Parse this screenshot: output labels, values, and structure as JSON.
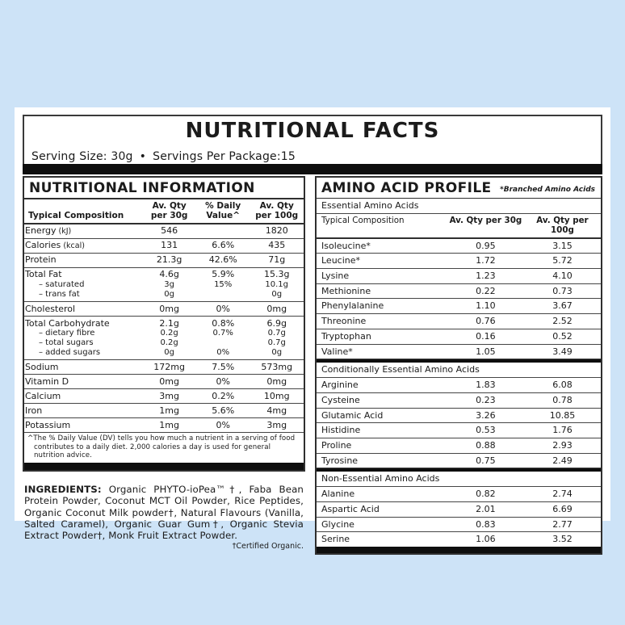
{
  "page": {
    "background_color": "#cde3f7",
    "card_color": "#ffffff",
    "text_color": "#1b1b1b"
  },
  "header": {
    "title": "NUTRITIONAL FACTS",
    "serving_size": "Serving Size: 30g",
    "bullet": "•",
    "servings_per_package": "Servings Per Package:15"
  },
  "nutrition_table": {
    "title": "NUTRITIONAL INFORMATION",
    "columns": [
      "Typical Composition",
      "Av. Qty\nper 30g",
      "% Daily\nValue^",
      "Av. Qty\nper 100g"
    ],
    "rows": [
      {
        "label": "Energy",
        "unit": "(kJ)",
        "qty30": "546",
        "dv": "",
        "qty100": "1820"
      },
      {
        "label": "Calories",
        "unit": "(kcal)",
        "qty30": "131",
        "dv": "6.6%",
        "qty100": "435"
      },
      {
        "label": "Protein",
        "qty30": "21.3g",
        "dv": "42.6%",
        "qty100": "71g"
      },
      {
        "label": "Total Fat",
        "qty30": "4.6g",
        "dv": "5.9%",
        "qty100": "15.3g",
        "subs": [
          {
            "label": "– saturated",
            "qty30": "3g",
            "dv": "15%",
            "qty100": "10.1g"
          },
          {
            "label": "– trans fat",
            "qty30": "0g",
            "dv": "",
            "qty100": "0g"
          }
        ]
      },
      {
        "label": "Cholesterol",
        "qty30": "0mg",
        "dv": "0%",
        "qty100": "0mg"
      },
      {
        "label": "Total Carbohydrate",
        "qty30": "2.1g",
        "dv": "0.8%",
        "qty100": "6.9g",
        "subs": [
          {
            "label": "– dietary fibre",
            "qty30": "0.2g",
            "dv": "0.7%",
            "qty100": "0.7g"
          },
          {
            "label": "– total sugars",
            "qty30": "0.2g",
            "dv": "",
            "qty100": "0.7g"
          },
          {
            "label": "– added sugars",
            "qty30": "0g",
            "dv": "0%",
            "qty100": "0g"
          }
        ]
      },
      {
        "label": "Sodium",
        "qty30": "172mg",
        "dv": "7.5%",
        "qty100": "573mg"
      },
      {
        "label": "Vitamin D",
        "qty30": "0mg",
        "dv": "0%",
        "qty100": "0mg"
      },
      {
        "label": "Calcium",
        "qty30": "3mg",
        "dv": "0.2%",
        "qty100": "10mg"
      },
      {
        "label": "Iron",
        "qty30": "1mg",
        "dv": "5.6%",
        "qty100": "4mg"
      },
      {
        "label": "Potassium",
        "qty30": "1mg",
        "dv": "0%",
        "qty100": "3mg"
      }
    ],
    "footnote": "^The % Daily Value (DV) tells you how much a nutrient in a serving of food contributes to a daily diet. 2,000 calories a day is used for general nutrition advice."
  },
  "amino_table": {
    "title": "AMINO ACID PROFILE",
    "note": "*Branched Amino Acids",
    "columns": [
      "Typical Composition",
      "Av. Qty per 30g",
      "Av. Qty per 100g"
    ],
    "sections": [
      {
        "label": "Essential Amino Acids",
        "rows": [
          [
            "Isoleucine*",
            "0.95",
            "3.15"
          ],
          [
            "Leucine*",
            "1.72",
            "5.72"
          ],
          [
            "Lysine",
            "1.23",
            "4.10"
          ],
          [
            "Methionine",
            "0.22",
            "0.73"
          ],
          [
            "Phenylalanine",
            "1.10",
            "3.67"
          ],
          [
            "Threonine",
            "0.76",
            "2.52"
          ],
          [
            "Tryptophan",
            "0.16",
            "0.52"
          ],
          [
            "Valine*",
            "1.05",
            "3.49"
          ]
        ]
      },
      {
        "label": "Conditionally Essential Amino Acids",
        "rows": [
          [
            "Arginine",
            "1.83",
            "6.08"
          ],
          [
            "Cysteine",
            "0.23",
            "0.78"
          ],
          [
            "Glutamic Acid",
            "3.26",
            "10.85"
          ],
          [
            "Histidine",
            "0.53",
            "1.76"
          ],
          [
            "Proline",
            "0.88",
            "2.93"
          ],
          [
            "Tyrosine",
            "0.75",
            "2.49"
          ]
        ]
      },
      {
        "label": "Non-Essential Amino Acids",
        "rows": [
          [
            "Alanine",
            "0.82",
            "2.74"
          ],
          [
            "Aspartic Acid",
            "2.01",
            "6.69"
          ],
          [
            "Glycine",
            "0.83",
            "2.77"
          ],
          [
            "Serine",
            "1.06",
            "3.52"
          ]
        ]
      }
    ]
  },
  "ingredients": {
    "label": "INGREDIENTS:",
    "text": " Organic PHYTO-ioPea™†, Faba Bean Protein Powder, Coconut MCT Oil Powder, Rice Peptides, Organic Coconut Milk powder†, Natural Flavours (Vanilla, Salted Caramel), Organic Guar Gum†, Organic Stevia Extract Powder†, Monk Fruit Extract Powder.",
    "footnote": "†Certified Organic."
  }
}
